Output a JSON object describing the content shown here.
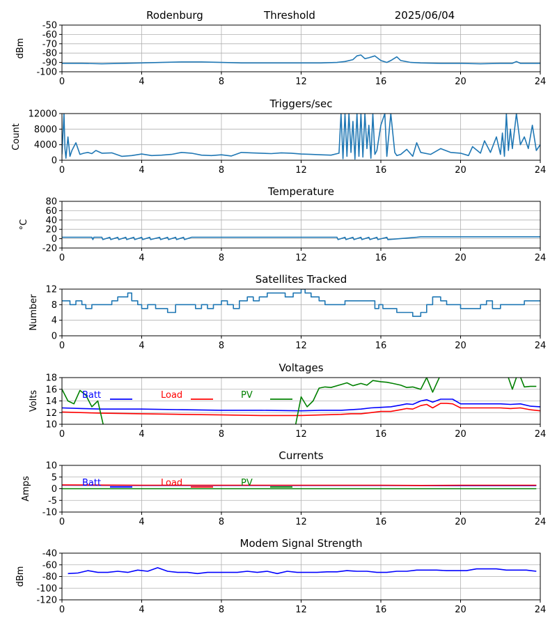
{
  "header": {
    "station": "Rodenburg",
    "label": "Threshold",
    "date": "2025/06/04"
  },
  "chart_data": [
    {
      "id": "threshold",
      "type": "line",
      "title": "",
      "ylabel": "dBm",
      "xlim": [
        0,
        24
      ],
      "ylim": [
        -100,
        -50
      ],
      "x_ticks": [
        0,
        4,
        8,
        12,
        16,
        20,
        24
      ],
      "y_ticks": [
        -100,
        -90,
        -80,
        -70,
        -60,
        -50
      ],
      "grid": true,
      "series": [
        {
          "color": "#1f77b4",
          "x": [
            0,
            1,
            2,
            3,
            4,
            5,
            6,
            7,
            8,
            9,
            10,
            11,
            12,
            13,
            13.8,
            14.2,
            14.6,
            14.8,
            15.0,
            15.2,
            15.4,
            15.7,
            16.0,
            16.3,
            16.5,
            16.8,
            17.0,
            17.5,
            18,
            19,
            20,
            21,
            22,
            22.6,
            22.8,
            23,
            24
          ],
          "values": [
            -91,
            -91,
            -91.5,
            -91,
            -90.5,
            -90,
            -89.5,
            -89.5,
            -90,
            -90.5,
            -90.5,
            -90.5,
            -90.5,
            -90.5,
            -90,
            -89,
            -87,
            -83,
            -82,
            -86,
            -85,
            -83,
            -88,
            -90,
            -88,
            -84,
            -88,
            -90,
            -90.5,
            -91,
            -91,
            -91.5,
            -91,
            -91,
            -89,
            -91,
            -91
          ]
        }
      ]
    },
    {
      "id": "triggers",
      "type": "line",
      "title": "Triggers/sec",
      "ylabel": "Count",
      "xlim": [
        0,
        24
      ],
      "ylim": [
        0,
        12000
      ],
      "x_ticks": [
        0,
        4,
        8,
        12,
        16,
        20,
        24
      ],
      "y_ticks": [
        0,
        4000,
        8000,
        12000
      ],
      "grid": true,
      "series": [
        {
          "color": "#1f77b4",
          "x": [
            0,
            0.1,
            0.15,
            0.2,
            0.3,
            0.4,
            0.5,
            0.7,
            0.9,
            1.1,
            1.3,
            1.5,
            1.7,
            2.0,
            2.5,
            3.0,
            3.5,
            4.0,
            4.5,
            5.0,
            5.5,
            6.0,
            6.5,
            7.0,
            7.5,
            8.0,
            8.5,
            9.0,
            9.5,
            10.0,
            10.5,
            11.0,
            11.5,
            12.0,
            12.5,
            13.0,
            13.5,
            13.9,
            14.0,
            14.1,
            14.2,
            14.3,
            14.4,
            14.5,
            14.6,
            14.7,
            14.8,
            14.9,
            15.0,
            15.1,
            15.2,
            15.3,
            15.4,
            15.5,
            15.6,
            15.7,
            15.8,
            16.0,
            16.2,
            16.3,
            16.5,
            16.7,
            16.8,
            17.0,
            17.3,
            17.6,
            17.8,
            18.0,
            18.5,
            19.0,
            19.5,
            20.0,
            20.4,
            20.6,
            21.0,
            21.2,
            21.5,
            21.8,
            22.0,
            22.1,
            22.2,
            22.3,
            22.4,
            22.5,
            22.6,
            22.8,
            23.0,
            23.2,
            23.4,
            23.6,
            23.8,
            24.0
          ],
          "values": [
            1500,
            12000,
            3000,
            500,
            6000,
            1000,
            2500,
            4500,
            1500,
            1800,
            2000,
            1700,
            2500,
            1800,
            1900,
            1000,
            1200,
            1600,
            1200,
            1300,
            1500,
            2000,
            1800,
            1300,
            1200,
            1400,
            1100,
            2000,
            1900,
            1800,
            1700,
            1900,
            1800,
            1600,
            1500,
            1400,
            1300,
            1800,
            12000,
            400,
            12000,
            1000,
            12000,
            2000,
            10000,
            300,
            12000,
            1000,
            12000,
            800,
            12000,
            3000,
            9000,
            500,
            12000,
            1500,
            2500,
            9000,
            12000,
            1000,
            12000,
            2000,
            1200,
            1500,
            2800,
            1000,
            4500,
            2000,
            1500,
            3000,
            2000,
            1800,
            1200,
            3500,
            1800,
            5000,
            2000,
            6000,
            1500,
            7000,
            1000,
            12000,
            2500,
            8000,
            3000,
            12000,
            4000,
            6000,
            3000,
            9000,
            2500,
            4000
          ]
        }
      ]
    },
    {
      "id": "temperature",
      "type": "line",
      "title": "Temperature",
      "ylabel": "°C",
      "xlim": [
        0,
        24
      ],
      "ylim": [
        -20,
        80
      ],
      "x_ticks": [
        0,
        4,
        8,
        12,
        16,
        20,
        24
      ],
      "y_ticks": [
        -20,
        0,
        20,
        40,
        60,
        80
      ],
      "grid": true,
      "series": [
        {
          "color": "#1f77b4",
          "x": [
            0,
            1.5,
            1.55,
            1.6,
            2.0,
            2.05,
            2.4,
            2.45,
            2.8,
            2.85,
            3.2,
            3.25,
            3.6,
            3.65,
            4.0,
            4.05,
            4.4,
            4.45,
            4.9,
            4.95,
            5.3,
            5.35,
            5.7,
            5.75,
            6.1,
            6.15,
            6.5,
            6.55,
            8,
            10,
            12,
            13.8,
            13.85,
            14.2,
            14.25,
            14.6,
            14.65,
            15.0,
            15.05,
            15.4,
            15.45,
            15.8,
            15.85,
            16.3,
            16.35,
            17.8,
            18,
            20,
            22,
            24
          ],
          "values": [
            3,
            3,
            -2,
            3,
            3,
            -2,
            3,
            -2,
            3,
            -2,
            3,
            -2,
            3,
            -2,
            3,
            -2,
            3,
            -2,
            3,
            -2,
            3,
            -2,
            3,
            -2,
            3,
            -2,
            3,
            3,
            3,
            3,
            3,
            3,
            -2,
            3,
            -2,
            3,
            -2,
            3,
            -2,
            3,
            -2,
            3,
            -2,
            3,
            -2,
            3,
            4,
            4,
            4,
            4
          ]
        }
      ]
    },
    {
      "id": "satellites",
      "type": "line",
      "title": "Satellites Tracked",
      "ylabel": "Number",
      "xlim": [
        0,
        24
      ],
      "ylim": [
        0,
        12
      ],
      "x_ticks": [
        0,
        4,
        8,
        12,
        16,
        20,
        24
      ],
      "y_ticks": [
        0,
        4,
        8,
        12
      ],
      "grid": true,
      "series": [
        {
          "color": "#1f77b4",
          "step": true,
          "x": [
            0,
            0.4,
            0.7,
            1.0,
            1.2,
            1.5,
            1.8,
            2.5,
            2.8,
            3.3,
            3.5,
            3.8,
            4.0,
            4.3,
            4.7,
            5.3,
            5.7,
            6.0,
            6.7,
            7.0,
            7.3,
            7.6,
            8.0,
            8.3,
            8.6,
            8.9,
            9.3,
            9.6,
            9.9,
            10.3,
            10.7,
            11.2,
            11.6,
            12.0,
            12.2,
            12.5,
            12.9,
            13.2,
            14.2,
            14.6,
            15.2,
            15.7,
            15.9,
            16.1,
            16.8,
            17.3,
            17.6,
            18.0,
            18.3,
            18.6,
            19.0,
            19.3,
            19.6,
            20.0,
            20.5,
            21.0,
            21.3,
            21.6,
            22.0,
            22.6,
            23.0,
            23.2,
            23.6,
            24.0
          ],
          "values": [
            9,
            8,
            9,
            8,
            7,
            8,
            8,
            9,
            10,
            11,
            9,
            8,
            7,
            8,
            7,
            6,
            8,
            8,
            7,
            8,
            7,
            8,
            9,
            8,
            7,
            9,
            10,
            9,
            10,
            11,
            11,
            10,
            11,
            12,
            11,
            10,
            9,
            8,
            9,
            9,
            9,
            7,
            8,
            7,
            6,
            6,
            5,
            6,
            8,
            10,
            9,
            8,
            8,
            7,
            7,
            8,
            9,
            7,
            8,
            8,
            8,
            9,
            9,
            9
          ]
        }
      ]
    },
    {
      "id": "voltages",
      "type": "line",
      "title": "Voltages",
      "ylabel": "Volts",
      "xlim": [
        0,
        24
      ],
      "ylim": [
        10,
        18
      ],
      "x_ticks": [
        0,
        4,
        8,
        12,
        16,
        20,
        24
      ],
      "y_ticks": [
        10,
        12,
        14,
        16,
        18
      ],
      "grid": true,
      "legend": "top-left",
      "series": [
        {
          "name": "Batt",
          "color": "#0000ff",
          "x": [
            0,
            1,
            2,
            4,
            6,
            8,
            10,
            12,
            13,
            14,
            14.5,
            15,
            15.5,
            16,
            16.5,
            17,
            17.3,
            17.6,
            18,
            18.3,
            18.6,
            19,
            19.3,
            19.6,
            20,
            22,
            22.5,
            23,
            23.5,
            24
          ],
          "values": [
            12.8,
            12.7,
            12.6,
            12.6,
            12.5,
            12.4,
            12.4,
            12.3,
            12.4,
            12.4,
            12.5,
            12.6,
            12.8,
            12.9,
            13.0,
            13.3,
            13.5,
            13.4,
            14.0,
            14.2,
            13.8,
            14.3,
            14.3,
            14.3,
            13.5,
            13.5,
            13.4,
            13.5,
            13.1,
            13.0
          ],
          "visible_range": [
            0,
            23.8
          ]
        },
        {
          "name": "Load",
          "color": "#ff0000",
          "x": [
            0,
            2,
            4,
            6,
            8,
            10,
            12,
            13,
            14,
            14.5,
            15,
            15.5,
            16,
            16.5,
            17,
            17.3,
            17.6,
            18,
            18.3,
            18.6,
            19,
            19.3,
            19.6,
            20,
            22,
            22.5,
            23,
            23.5,
            24
          ],
          "values": [
            12.1,
            11.9,
            11.8,
            11.7,
            11.6,
            11.5,
            11.5,
            11.6,
            11.7,
            11.8,
            11.8,
            12.0,
            12.2,
            12.2,
            12.5,
            12.7,
            12.6,
            13.2,
            13.4,
            12.8,
            13.6,
            13.6,
            13.5,
            12.8,
            12.8,
            12.7,
            12.8,
            12.5,
            12.3
          ]
        },
        {
          "name": "PV",
          "color": "#008000",
          "x": [
            0,
            0.3,
            0.6,
            0.9,
            1.2,
            1.5,
            1.8,
            2.1,
            11.7,
            12.0,
            12.3,
            12.6,
            12.9,
            13.2,
            13.5,
            14.0,
            14.3,
            14.6,
            15.0,
            15.3,
            15.6,
            16.0,
            16.3,
            16.6,
            17.0,
            17.3,
            17.6,
            18.0,
            18.3,
            18.6,
            19.0,
            22.0,
            22.3,
            22.6,
            22.9,
            23.2,
            23.5,
            23.8
          ],
          "values": [
            16.0,
            14.0,
            13.5,
            15.8,
            15.0,
            13.0,
            14.0,
            9.5,
            9.5,
            14.7,
            13.0,
            14.0,
            16.2,
            16.4,
            16.3,
            16.8,
            17.1,
            16.6,
            17.0,
            16.7,
            17.5,
            17.3,
            17.2,
            17.0,
            16.7,
            16.3,
            16.4,
            16.0,
            18.0,
            15.5,
            18.5,
            18.5,
            19.0,
            16.0,
            19.0,
            16.4,
            16.5,
            16.5
          ]
        }
      ]
    },
    {
      "id": "currents",
      "type": "line",
      "title": "Currents",
      "ylabel": "Amps",
      "xlim": [
        0,
        24
      ],
      "ylim": [
        -10,
        10
      ],
      "x_ticks": [
        0,
        4,
        8,
        12,
        16,
        20,
        24
      ],
      "y_ticks": [
        -10,
        -5,
        0,
        5,
        10
      ],
      "grid": true,
      "legend": "top-left",
      "series": [
        {
          "name": "Batt",
          "color": "#0000ff",
          "x": [
            0,
            4,
            8,
            12,
            16,
            20,
            23.8
          ],
          "values": [
            1.5,
            1.4,
            1.4,
            1.4,
            1.4,
            1.3,
            1.3
          ]
        },
        {
          "name": "Load",
          "color": "#ff0000",
          "x": [
            0,
            4,
            8,
            12,
            16,
            18,
            20,
            23.8
          ],
          "values": [
            1.6,
            1.5,
            1.5,
            1.5,
            1.5,
            1.4,
            1.5,
            1.5
          ]
        },
        {
          "name": "PV",
          "color": "#008000",
          "x": [
            0,
            4,
            8,
            12,
            16,
            20,
            23.8
          ],
          "values": [
            0,
            0,
            0,
            0,
            0,
            0,
            0
          ]
        }
      ]
    },
    {
      "id": "modem",
      "type": "line",
      "title": "Modem Signal Strength",
      "ylabel": "dBm",
      "xlim": [
        0,
        24
      ],
      "ylim": [
        -120,
        -40
      ],
      "x_ticks": [
        0,
        4,
        8,
        12,
        16,
        20,
        24
      ],
      "y_ticks": [
        -120,
        -100,
        -80,
        -60,
        -40
      ],
      "grid": true,
      "series": [
        {
          "color": "#0000ff",
          "x": [
            0.3,
            0.8,
            1.3,
            1.8,
            2.3,
            2.8,
            3.3,
            3.8,
            4.3,
            4.8,
            5.3,
            5.8,
            6.3,
            6.8,
            7.3,
            7.8,
            8.3,
            8.8,
            9.3,
            9.8,
            10.3,
            10.8,
            11.3,
            11.8,
            12.3,
            12.8,
            13.3,
            13.8,
            14.3,
            14.8,
            15.3,
            15.8,
            16.3,
            16.8,
            17.3,
            17.8,
            18.3,
            18.8,
            19.3,
            19.8,
            20.3,
            20.8,
            21.3,
            21.8,
            22.3,
            22.8,
            23.3,
            23.8
          ],
          "values": [
            -75,
            -74,
            -70,
            -73,
            -73,
            -71,
            -73,
            -69,
            -71,
            -65,
            -71,
            -73,
            -73,
            -75,
            -73,
            -73,
            -73,
            -73,
            -71,
            -73,
            -71,
            -75,
            -71,
            -73,
            -73,
            -73,
            -72,
            -72,
            -70,
            -71,
            -71,
            -73,
            -73,
            -71,
            -71,
            -69,
            -69,
            -69,
            -70,
            -70,
            -70,
            -67,
            -67,
            -67,
            -69,
            -69,
            -69,
            -71
          ]
        }
      ]
    }
  ]
}
